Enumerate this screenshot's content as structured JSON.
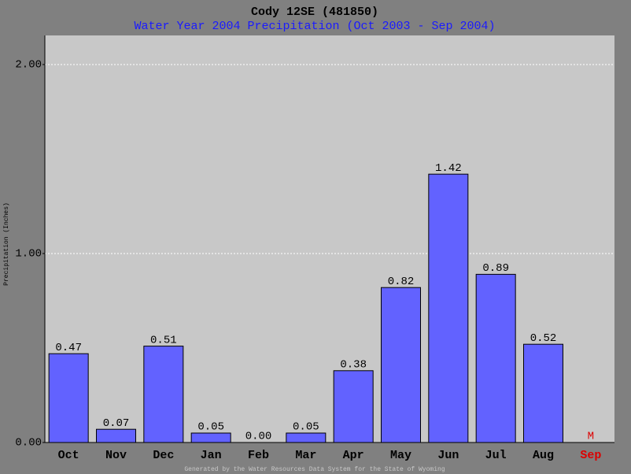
{
  "chart_data": {
    "type": "bar",
    "title": "Cody 12SE (481850)",
    "subtitle": "Water Year 2004 Precipitation (Oct 2003 - Sep 2004)",
    "y_label": "Precipitation (Inches)",
    "footer": "Generated by the Water Resources Data System for the State of Wyoming",
    "categories": [
      "Oct",
      "Nov",
      "Dec",
      "Jan",
      "Feb",
      "Mar",
      "Apr",
      "May",
      "Jun",
      "Jul",
      "Aug",
      "Sep"
    ],
    "values": [
      0.47,
      0.07,
      0.51,
      0.05,
      0,
      0.05,
      0.38,
      0.82,
      1.42,
      0.89,
      0.52,
      null
    ],
    "value_labels": [
      "0.47",
      "0.07",
      "0.51",
      "0.05",
      "0.00",
      "0.05",
      "0.38",
      "0.82",
      "1.42",
      "0.89",
      "0.52",
      "M"
    ],
    "color": "#6262ff",
    "missing_color": "#dd0000",
    "ylim": [
      0,
      2.154
    ],
    "yticks": [
      {
        "value": 0,
        "label": "0.00"
      },
      {
        "value": 1,
        "label": "1.00"
      },
      {
        "value": 2,
        "label": "2.00"
      }
    ],
    "grid": true
  }
}
